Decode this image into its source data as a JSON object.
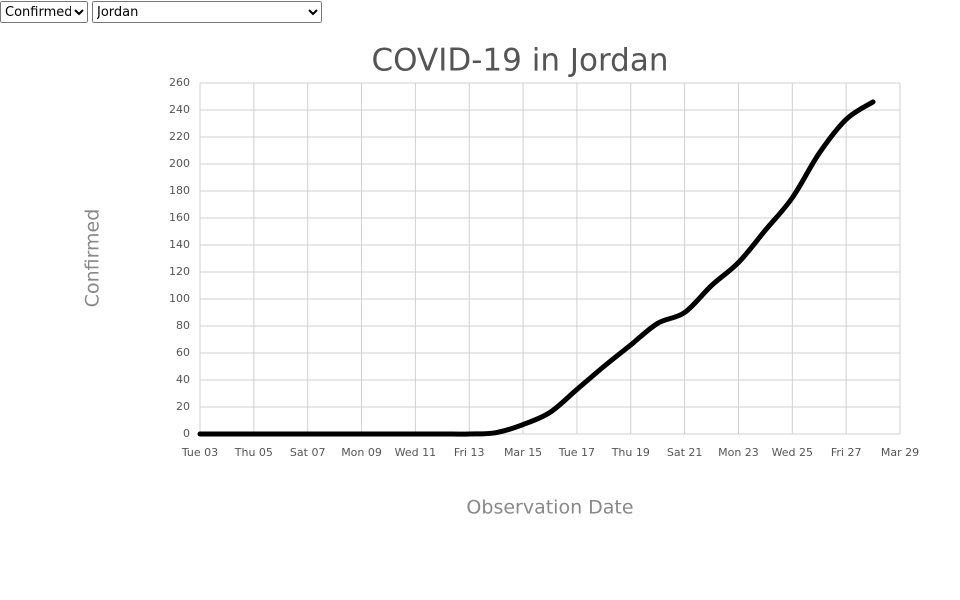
{
  "controls": {
    "metric": "Confirmed",
    "country": "Jordan"
  },
  "chart_data": {
    "type": "line",
    "title": "COVID-19 in Jordan",
    "x_label": "Observation Date",
    "y_label": "Confirmed",
    "x": [
      3,
      4,
      5,
      6,
      7,
      8,
      9,
      10,
      11,
      12,
      13,
      14,
      15,
      16,
      17,
      18,
      19,
      20,
      21,
      22,
      23,
      24,
      25,
      26,
      27,
      28
    ],
    "series": [
      {
        "name": "Confirmed",
        "color": "#000000",
        "values": [
          0,
          0,
          0,
          0,
          0,
          0,
          0,
          0,
          0,
          0,
          0,
          1,
          7,
          16,
          33,
          50,
          66,
          82,
          90,
          110,
          127,
          151,
          175,
          208,
          233,
          246
        ]
      }
    ],
    "xlim": [
      3,
      29
    ],
    "xticks": [
      {
        "value": 3,
        "label": "Tue 03"
      },
      {
        "value": 5,
        "label": "Thu 05"
      },
      {
        "value": 7,
        "label": "Sat 07"
      },
      {
        "value": 9,
        "label": "Mon 09"
      },
      {
        "value": 11,
        "label": "Wed 11"
      },
      {
        "value": 13,
        "label": "Fri 13"
      },
      {
        "value": 15,
        "label": "Mar 15"
      },
      {
        "value": 17,
        "label": "Tue 17"
      },
      {
        "value": 19,
        "label": "Thu 19"
      },
      {
        "value": 21,
        "label": "Sat 21"
      },
      {
        "value": 23,
        "label": "Mon 23"
      },
      {
        "value": 25,
        "label": "Wed 25"
      },
      {
        "value": 27,
        "label": "Fri 27"
      },
      {
        "value": 29,
        "label": "Mar 29"
      }
    ],
    "ylim": [
      0,
      260
    ],
    "yticks": [
      0,
      20,
      40,
      60,
      80,
      100,
      120,
      140,
      160,
      180,
      200,
      220,
      240,
      260
    ],
    "grid": true
  }
}
